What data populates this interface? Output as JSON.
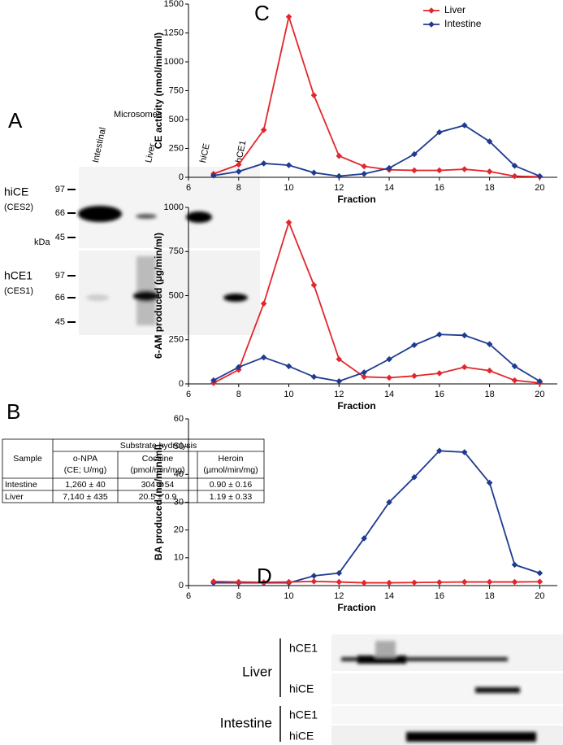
{
  "panel_a": {
    "label": "A",
    "title": "Microsomes",
    "lanes": [
      "Intestinal",
      "Liver",
      "hiCE",
      "hCE1"
    ],
    "unit": "kDa",
    "blots": [
      {
        "name": "hiCE",
        "subname": "(CES2)",
        "markers": [
          97,
          66,
          45
        ]
      },
      {
        "name": "hCE1",
        "subname": "(CES1)",
        "markers": [
          97,
          66,
          45
        ]
      }
    ]
  },
  "panel_b": {
    "label": "B",
    "table": {
      "head": [
        "Sample",
        "Substrate hydrolysis"
      ],
      "columns": [
        [
          "o-NPA",
          "(CE; U/mg)"
        ],
        [
          "Cocaine",
          "(pmol/min/mg)"
        ],
        [
          "Heroin",
          "(µmol/min/mg)"
        ]
      ],
      "rows": [
        [
          "Intestine",
          "1,260 ± 40",
          "304 ± 54",
          "0.90 ± 0.16"
        ],
        [
          "Liver",
          "7,140 ± 435",
          "20.5 ± 0.9",
          "1.19 ± 0.33"
        ]
      ]
    }
  },
  "panel_c": {
    "label": "C"
  },
  "chart_data": [
    {
      "type": "line",
      "y_label": "CE activity (nmol/min/ml)",
      "x_label": "Fraction",
      "x": [
        7,
        8,
        9,
        10,
        11,
        12,
        13,
        14,
        15,
        16,
        17,
        18,
        19,
        20
      ],
      "xlim": [
        6,
        20.7
      ],
      "xticks": [
        6,
        8,
        10,
        12,
        14,
        16,
        18,
        20
      ],
      "ylim": [
        0,
        1500
      ],
      "yticks": [
        0,
        250,
        500,
        750,
        1000,
        1250,
        1500
      ],
      "legend": "top-right",
      "series": [
        {
          "name": "Liver",
          "color": "#e3262b",
          "values": [
            30,
            110,
            410,
            1390,
            710,
            185,
            95,
            65,
            60,
            60,
            70,
            50,
            10,
            5
          ]
        },
        {
          "name": "Intestine",
          "color": "#1f3b8f",
          "values": [
            15,
            50,
            120,
            105,
            40,
            10,
            30,
            80,
            200,
            390,
            450,
            310,
            100,
            10
          ]
        }
      ]
    },
    {
      "type": "line",
      "y_label": "6-AM produced (µg/min/ml)",
      "x_label": "Fraction",
      "x": [
        7,
        8,
        9,
        10,
        11,
        12,
        13,
        14,
        15,
        16,
        17,
        18,
        19,
        20
      ],
      "xlim": [
        6,
        20.7
      ],
      "xticks": [
        6,
        8,
        10,
        12,
        14,
        16,
        18,
        20
      ],
      "ylim": [
        0,
        1000
      ],
      "yticks": [
        0,
        250,
        500,
        750,
        1000
      ],
      "series": [
        {
          "color": "#e3262b",
          "values": [
            5,
            80,
            455,
            915,
            560,
            140,
            40,
            35,
            45,
            60,
            95,
            75,
            20,
            5
          ]
        },
        {
          "color": "#1f3b8f",
          "values": [
            20,
            95,
            150,
            100,
            40,
            15,
            65,
            140,
            220,
            280,
            275,
            225,
            100,
            15
          ]
        }
      ]
    },
    {
      "type": "line",
      "y_label": "BA produced (ng/min/ml)",
      "x_label": "Fraction",
      "x": [
        7,
        8,
        9,
        10,
        11,
        12,
        13,
        14,
        15,
        16,
        17,
        18,
        19,
        20
      ],
      "xlim": [
        6,
        20.7
      ],
      "xticks": [
        6,
        8,
        10,
        12,
        14,
        16,
        18,
        20
      ],
      "ylim": [
        0,
        60
      ],
      "yticks": [
        0,
        10,
        20,
        30,
        40,
        50,
        60
      ],
      "series": [
        {
          "color": "#1f3b8f",
          "values": [
            1.0,
            1.0,
            1.0,
            1.0,
            3.5,
            4.5,
            17,
            30,
            39,
            48.5,
            48,
            37,
            7.5,
            4.5
          ]
        },
        {
          "color": "#e3262b",
          "values": [
            1.5,
            1.3,
            1.2,
            1.3,
            1.5,
            1.3,
            1.0,
            1.0,
            1.1,
            1.2,
            1.3,
            1.3,
            1.3,
            1.4
          ]
        }
      ]
    }
  ],
  "panel_d": {
    "label": "D",
    "groups": [
      {
        "name": "Liver",
        "rows": [
          "hCE1",
          "hiCE"
        ]
      },
      {
        "name": "Intestine",
        "rows": [
          "hCE1",
          "hiCE"
        ]
      }
    ]
  }
}
